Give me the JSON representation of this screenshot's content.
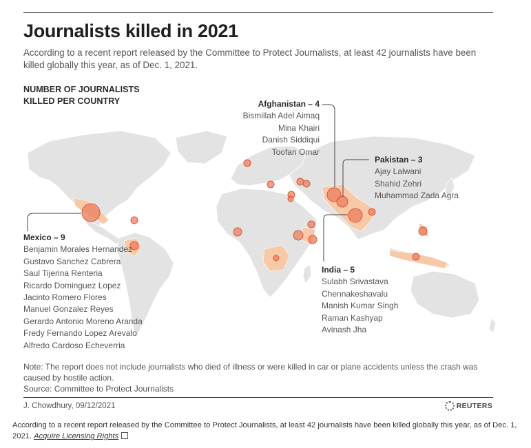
{
  "title": "Journalists killed in 2021",
  "subtitle": "According to a recent report released by the Committee to Protect Journalists, at least 42 journalists have been killed globally this year, as of Dec. 1, 2021.",
  "section_label_line1": "NUMBER OF JOURNALISTS",
  "section_label_line2": "KILLED PER COUNTRY",
  "callouts": {
    "afghanistan": {
      "head": "Afghanistan – 4",
      "names": [
        "Bismillah Adel Aimaq",
        "Mina Khairi",
        "Danish Siddiqui",
        "Toofan Omar"
      ]
    },
    "pakistan": {
      "head": "Pakistan – 3",
      "names": [
        "Ajay Lalwani",
        "Shahid Zehri",
        "Muhammad Zada Agra"
      ]
    },
    "mexico": {
      "head": "Mexico – 9",
      "names": [
        "Benjamin Morales Hernandez",
        "Gustavo Sanchez Cabrera",
        "Saul Tijerina Renteria",
        "Ricardo Dominguez Lopez",
        "Jacinto Romero Flores",
        "Manuel Gonzalez Reyes",
        "Gerardo Antonio Moreno Aranda",
        "Fredy Fernando Lopez Arevalo",
        "Alfredo Cardoso Echeverria"
      ]
    },
    "india": {
      "head": "India – 5",
      "names": [
        "Sulabh Srivastava",
        "Chennakeshavalu",
        "Manish Kumar Singh",
        "Raman Kashyap",
        "Avinash Jha"
      ]
    }
  },
  "note": "Note: The report does not include journalists who died of illness or were killed in car or plane accidents unless the crash was caused by hostile action.",
  "source": "Source: Committee to Protect Journalists",
  "credit": "J. Chowdhury, 09/12/2021",
  "brand": "REUTERS",
  "caption_text": "According to a recent report released by the Committee to Protect Journalists, at least 42 journalists have been killed globally this year, as of Dec. 1, 2021.",
  "caption_link": "Acquire Licensing Rights",
  "colors": {
    "land": "#e3e3e3",
    "border": "#ffffff",
    "highlight": "#f7c9a6",
    "bubble": "#ec7b5c",
    "bubble_stroke": "#d9573a"
  },
  "map_bubbles": [
    {
      "place": "Mexico",
      "count": 9
    },
    {
      "place": "India",
      "count": 5
    },
    {
      "place": "Afghanistan",
      "count": 4
    },
    {
      "place": "Pakistan",
      "count": 3
    }
  ]
}
